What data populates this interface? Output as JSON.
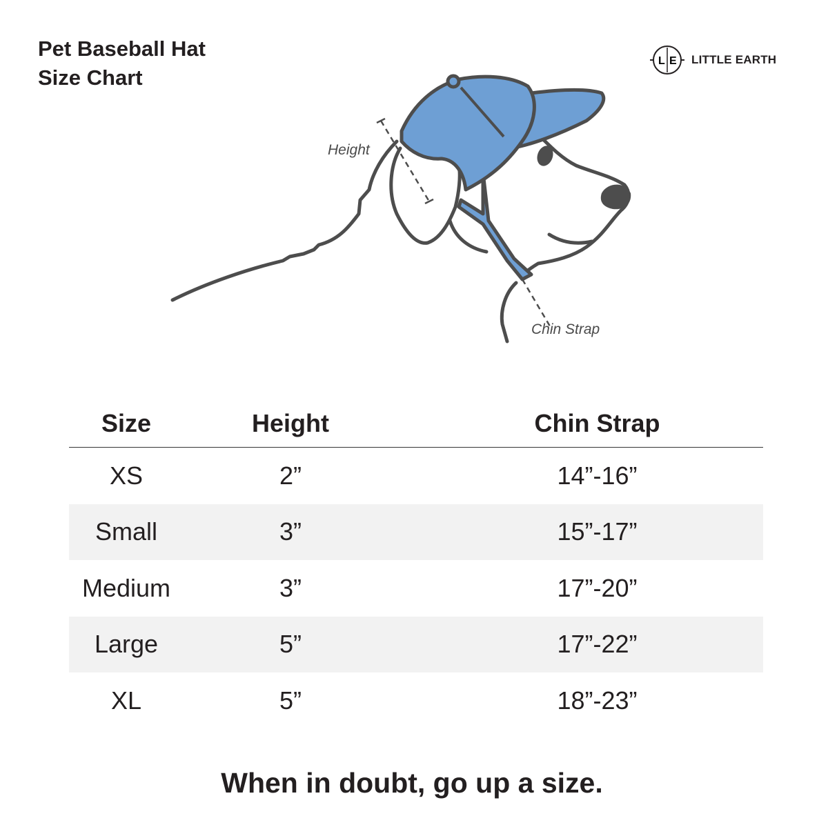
{
  "title": {
    "line1": "Pet Baseball Hat",
    "line2": "Size Chart"
  },
  "brand": {
    "monogram_left": "L",
    "monogram_right": "E",
    "name": "LITTLE EARTH"
  },
  "illustration": {
    "height_label": "Height",
    "chin_strap_label": "Chin Strap",
    "cap_color": "#6e9fd4",
    "line_color": "#4d4d4d"
  },
  "table": {
    "headers": [
      "Size",
      "Height",
      "Chin Strap"
    ],
    "rows": [
      {
        "size": "XS",
        "height": "2”",
        "chin_strap": "14”-16”"
      },
      {
        "size": "Small",
        "height": "3”",
        "chin_strap": "15”-17”"
      },
      {
        "size": "Medium",
        "height": "3”",
        "chin_strap": "17”-20”"
      },
      {
        "size": "Large",
        "height": "5”",
        "chin_strap": "17”-22”"
      },
      {
        "size": "XL",
        "height": "5”",
        "chin_strap": "18”-23”"
      }
    ],
    "stripe_color": "#f2f2f2"
  },
  "footer": "When in doubt, go up a size."
}
